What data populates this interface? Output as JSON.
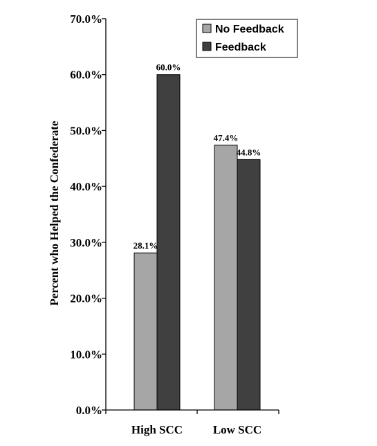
{
  "chart_data": {
    "type": "bar",
    "categories": [
      "High SCC",
      "Low SCC"
    ],
    "series": [
      {
        "name": "No Feedback",
        "values": [
          28.1,
          47.4
        ],
        "labels": [
          "28.1%",
          "47.4%"
        ],
        "color": "#a6a6a6"
      },
      {
        "name": "Feedback",
        "values": [
          60.0,
          44.8
        ],
        "labels": [
          "60.0%",
          "44.8%"
        ],
        "color": "#404040"
      }
    ],
    "ylabel": "Percent who Helped the Confederate",
    "xlabel": "",
    "ylim": [
      0,
      70
    ],
    "yticks": [
      0,
      10,
      20,
      30,
      40,
      50,
      60,
      70
    ],
    "ytick_labels": [
      "0.0%",
      "10.0%",
      "20.0%",
      "30.0%",
      "40.0%",
      "50.0%",
      "60.0%",
      "70.0%"
    ],
    "grid": false,
    "legend_position": "top-right"
  }
}
